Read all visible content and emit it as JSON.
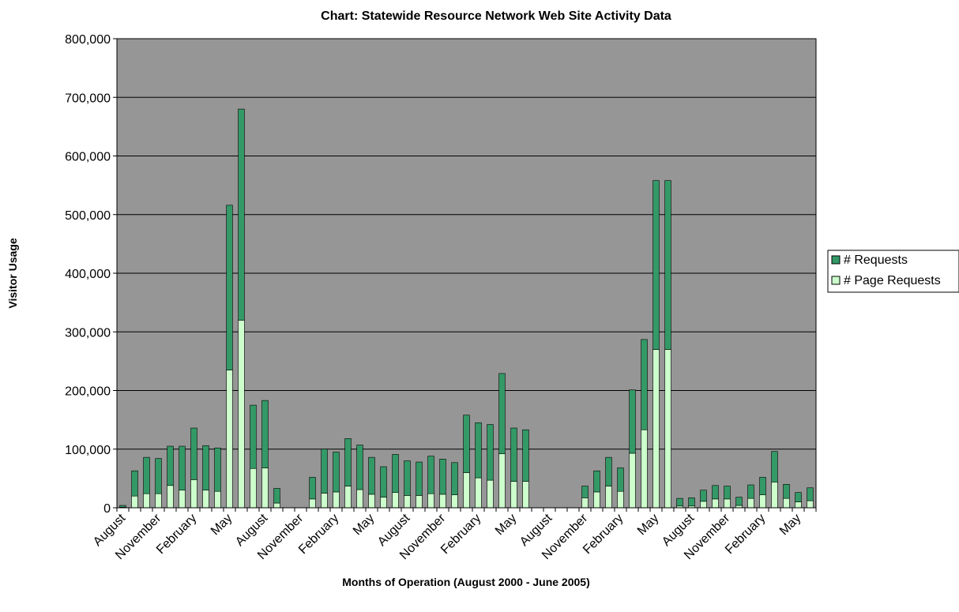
{
  "chart_data": {
    "type": "bar",
    "stacked": true,
    "title": "Chart: Statewide Resource Network Web Site Activity Data",
    "xlabel": "Months of Operation (August 2000 - June 2005)",
    "ylabel": "Visitor Usage",
    "ylim": [
      0,
      800000
    ],
    "yticks": [
      "0",
      "100,000",
      "200,000",
      "300,000",
      "400,000",
      "500,000",
      "600,000",
      "700,000",
      "800,000"
    ],
    "plot_background": "#969696",
    "grid": true,
    "legend_position": "right",
    "categories": [
      "August",
      "September",
      "October",
      "November",
      "December",
      "January",
      "February",
      "March",
      "April",
      "May",
      "June",
      "July",
      "August",
      "September",
      "October",
      "November",
      "December",
      "January",
      "February",
      "March",
      "April",
      "May",
      "June",
      "July",
      "August",
      "September",
      "October",
      "November",
      "December",
      "January",
      "February",
      "March",
      "April",
      "May",
      "June",
      "July",
      "August",
      "September",
      "October",
      "November",
      "December",
      "January",
      "February",
      "March",
      "April",
      "May",
      "June",
      "July",
      "August",
      "September",
      "October",
      "November",
      "December",
      "January",
      "February",
      "March",
      "April",
      "May",
      "June"
    ],
    "shown_x_labels": [
      {
        "index": 0,
        "text": "August"
      },
      {
        "index": 3,
        "text": "November"
      },
      {
        "index": 6,
        "text": "February"
      },
      {
        "index": 9,
        "text": "May"
      },
      {
        "index": 12,
        "text": "August"
      },
      {
        "index": 15,
        "text": "November"
      },
      {
        "index": 18,
        "text": "February"
      },
      {
        "index": 21,
        "text": "May"
      },
      {
        "index": 24,
        "text": "August"
      },
      {
        "index": 27,
        "text": "November"
      },
      {
        "index": 30,
        "text": "February"
      },
      {
        "index": 33,
        "text": "May"
      },
      {
        "index": 36,
        "text": "August"
      },
      {
        "index": 39,
        "text": "November"
      },
      {
        "index": 42,
        "text": "February"
      },
      {
        "index": 45,
        "text": "May"
      },
      {
        "index": 48,
        "text": "August"
      },
      {
        "index": 51,
        "text": "November"
      },
      {
        "index": 54,
        "text": "February"
      },
      {
        "index": 57,
        "text": "May"
      }
    ],
    "series": [
      {
        "name": "# Page Requests",
        "color": "#ccffcc",
        "values": [
          1000,
          20000,
          24000,
          24000,
          38000,
          30000,
          48000,
          30000,
          28000,
          235000,
          320000,
          67000,
          68000,
          8000,
          0,
          0,
          15000,
          25000,
          27000,
          37000,
          31000,
          23000,
          18000,
          26000,
          21000,
          21000,
          24000,
          23000,
          22000,
          60000,
          51000,
          47000,
          92000,
          45000,
          45000,
          0,
          0,
          0,
          0,
          17000,
          27000,
          37000,
          28000,
          93000,
          133000,
          270000,
          270000,
          3000,
          3000,
          11000,
          15000,
          15000,
          4000,
          16000,
          22000,
          44000,
          16000,
          10000,
          12000
        ]
      },
      {
        "name": "# Requests",
        "color": "#339966",
        "values": [
          3000,
          43000,
          62000,
          60000,
          67000,
          75000,
          88000,
          76000,
          74000,
          281000,
          360000,
          108000,
          115000,
          25000,
          0,
          0,
          37000,
          75000,
          68000,
          81000,
          76000,
          63000,
          52000,
          65000,
          59000,
          57000,
          64000,
          60000,
          55000,
          98000,
          94000,
          95000,
          137000,
          91000,
          88000,
          0,
          0,
          0,
          0,
          20000,
          36000,
          49000,
          40000,
          108000,
          154000,
          288000,
          288000,
          13000,
          14000,
          19000,
          23000,
          22000,
          14000,
          23000,
          30000,
          52000,
          24000,
          16000,
          22000
        ]
      }
    ],
    "legend": [
      {
        "label": "# Requests",
        "color": "#339966"
      },
      {
        "label": "# Page Requests",
        "color": "#ccffcc"
      }
    ]
  }
}
